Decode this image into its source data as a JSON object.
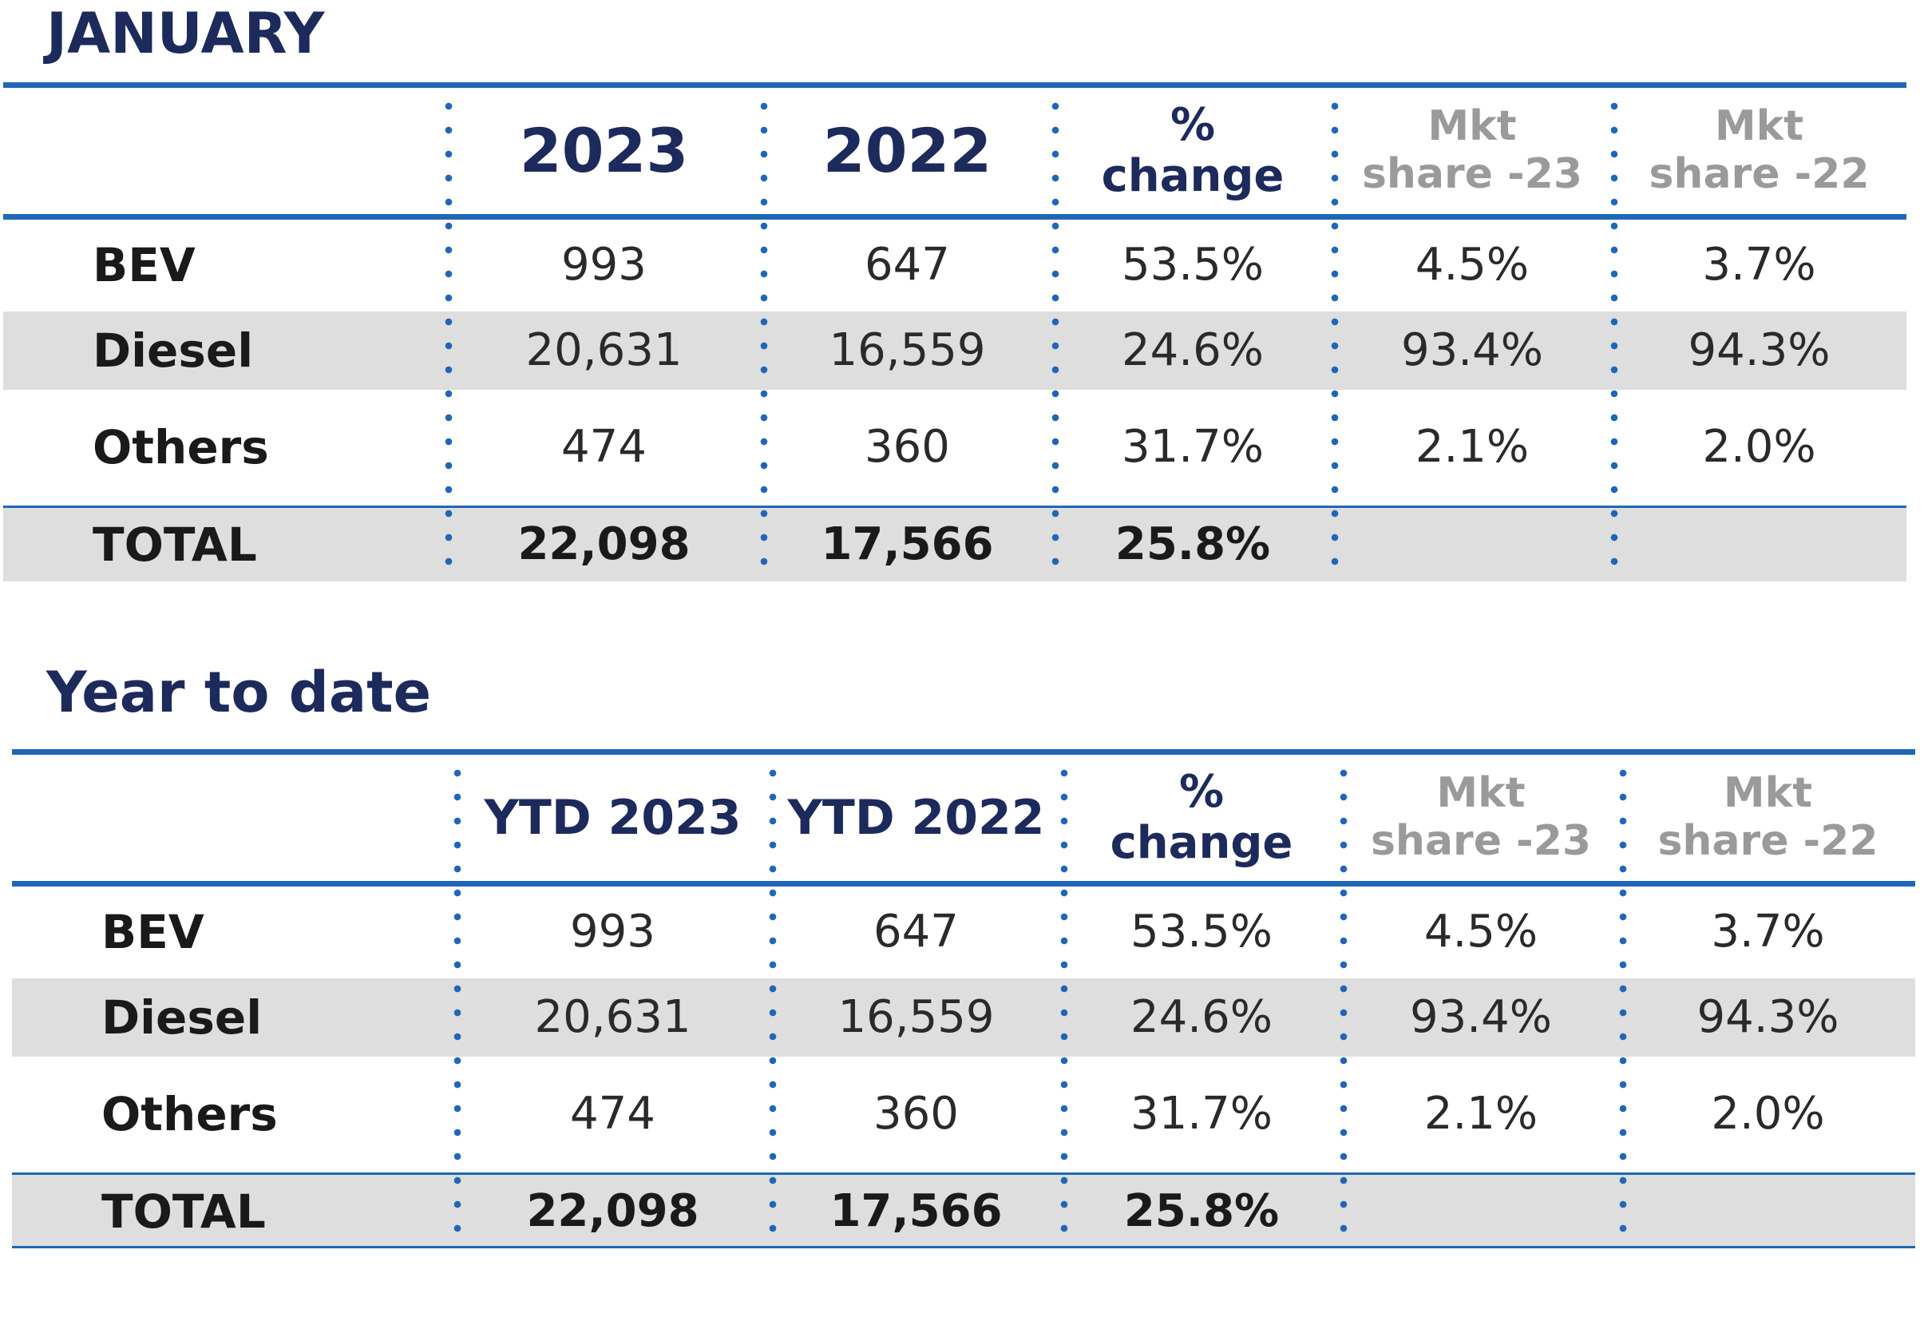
{
  "january": {
    "title": "JANUARY",
    "headers": {
      "col1": "2023",
      "col2": "2022",
      "pct_line1": "%",
      "pct_line2": "change",
      "mkt23_line1": "Mkt",
      "mkt23_line2": "share -23",
      "mkt22_line1": "Mkt",
      "mkt22_line2": "share -22"
    },
    "rows": [
      {
        "label": "BEV",
        "v1": "993",
        "v2": "647",
        "pct": "53.5%",
        "m23": "4.5%",
        "m22": "3.7%"
      },
      {
        "label": "Diesel",
        "v1": "20,631",
        "v2": "16,559",
        "pct": "24.6%",
        "m23": "93.4%",
        "m22": "94.3%"
      },
      {
        "label": "Others",
        "v1": "474",
        "v2": "360",
        "pct": "31.7%",
        "m23": "2.1%",
        "m22": "2.0%"
      }
    ],
    "total": {
      "label": "TOTAL",
      "v1": "22,098",
      "v2": "17,566",
      "pct": "25.8%"
    }
  },
  "ytd": {
    "title": "Year to date",
    "headers": {
      "col1": "YTD 2023",
      "col2": "YTD 2022",
      "pct_line1": "%",
      "pct_line2": "change",
      "mkt23_line1": "Mkt",
      "mkt23_line2": "share -23",
      "mkt22_line1": "Mkt",
      "mkt22_line2": "share -22"
    },
    "rows": [
      {
        "label": "BEV",
        "v1": "993",
        "v2": "647",
        "pct": "53.5%",
        "m23": "4.5%",
        "m22": "3.7%"
      },
      {
        "label": "Diesel",
        "v1": "20,631",
        "v2": "16,559",
        "pct": "24.6%",
        "m23": "93.4%",
        "m22": "94.3%"
      },
      {
        "label": "Others",
        "v1": "474",
        "v2": "360",
        "pct": "31.7%",
        "m23": "2.1%",
        "m22": "2.0%"
      }
    ],
    "total": {
      "label": "TOTAL",
      "v1": "22,098",
      "v2": "17,566",
      "pct": "25.8%"
    }
  },
  "colors": {
    "title": "#1c2a5c",
    "rule": "#1f67b6",
    "shade": "#dedede",
    "muted_header": "#9a9a9a"
  }
}
